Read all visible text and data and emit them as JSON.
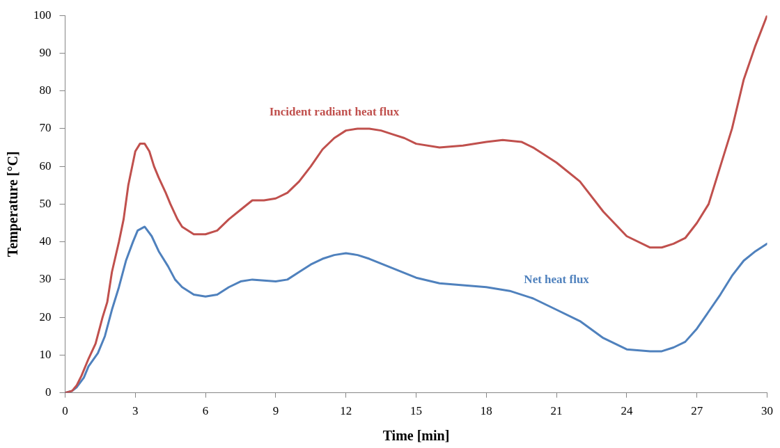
{
  "chart_data": {
    "type": "line",
    "xlabel": "Time [min]",
    "ylabel": "Temperature [°C]",
    "xlim": [
      0,
      30
    ],
    "xticks": [
      0,
      3,
      6,
      9,
      12,
      15,
      18,
      21,
      24,
      27,
      30
    ],
    "ylim": [
      0,
      100
    ],
    "yticks": [
      0,
      10,
      20,
      30,
      40,
      50,
      60,
      70,
      80,
      90,
      100
    ],
    "grid": false,
    "legend": false,
    "marker": "none",
    "line_style": "solid",
    "series": [
      {
        "name": "Incident radiant heat flux",
        "color": "#c0504d",
        "x": [
          0,
          0.3,
          0.5,
          0.7,
          1,
          1.3,
          1.6,
          1.8,
          2,
          2.3,
          2.5,
          2.7,
          3,
          3.2,
          3.4,
          3.6,
          3.8,
          4,
          4.3,
          4.5,
          4.8,
          5,
          5.5,
          6,
          6.5,
          7,
          7.5,
          8,
          8.5,
          9,
          9.5,
          10,
          10.5,
          11,
          11.5,
          12,
          12.5,
          13,
          13.5,
          14,
          14.5,
          15,
          16,
          17,
          18,
          18.7,
          19.5,
          20,
          21,
          22,
          23,
          24,
          25,
          25.5,
          26,
          26.5,
          27,
          27.5,
          28,
          28.5,
          29,
          29.5,
          30
        ],
        "values": [
          0,
          0.5,
          2,
          4.5,
          9,
          13,
          20,
          24,
          32,
          40,
          46,
          55,
          64,
          66,
          66,
          64,
          60,
          57,
          53,
          50,
          46,
          44,
          42,
          42,
          43,
          46,
          48.5,
          51,
          51,
          51.5,
          53,
          56,
          60,
          64.5,
          67.5,
          69.5,
          70,
          70,
          69.5,
          68.5,
          67.5,
          66,
          65,
          65.5,
          66.5,
          67,
          66.5,
          65,
          61,
          56,
          48,
          41.5,
          38.5,
          38.5,
          39.5,
          41,
          45,
          50,
          60,
          70,
          83,
          92,
          100
        ]
      },
      {
        "name": "Net heat flux",
        "color": "#4f81bd",
        "x": [
          0,
          0.3,
          0.5,
          0.8,
          1,
          1.4,
          1.7,
          2,
          2.3,
          2.6,
          2.9,
          3.1,
          3.4,
          3.7,
          4,
          4.4,
          4.7,
          5,
          5.5,
          6,
          6.5,
          7,
          7.5,
          8,
          9,
          9.5,
          10,
          10.5,
          11,
          11.5,
          12,
          12.5,
          13,
          14,
          15,
          16,
          17,
          18,
          19,
          20,
          21,
          22,
          23,
          24,
          25,
          25.5,
          26,
          26.5,
          27,
          27.5,
          28,
          28.5,
          29,
          29.5,
          30
        ],
        "values": [
          0,
          0.5,
          1.5,
          4,
          7,
          10.5,
          15,
          22,
          28,
          35,
          40,
          43,
          44,
          41.5,
          37.5,
          33.5,
          30,
          28,
          26,
          25.5,
          26,
          28,
          29.5,
          30,
          29.5,
          30,
          32,
          34,
          35.5,
          36.5,
          37,
          36.5,
          35.5,
          33,
          30.5,
          29,
          28.5,
          28,
          27,
          25,
          22,
          19,
          14.5,
          11.5,
          11,
          11,
          12,
          13.5,
          17,
          21.5,
          26,
          31,
          35,
          37.5,
          39.5
        ]
      }
    ]
  }
}
